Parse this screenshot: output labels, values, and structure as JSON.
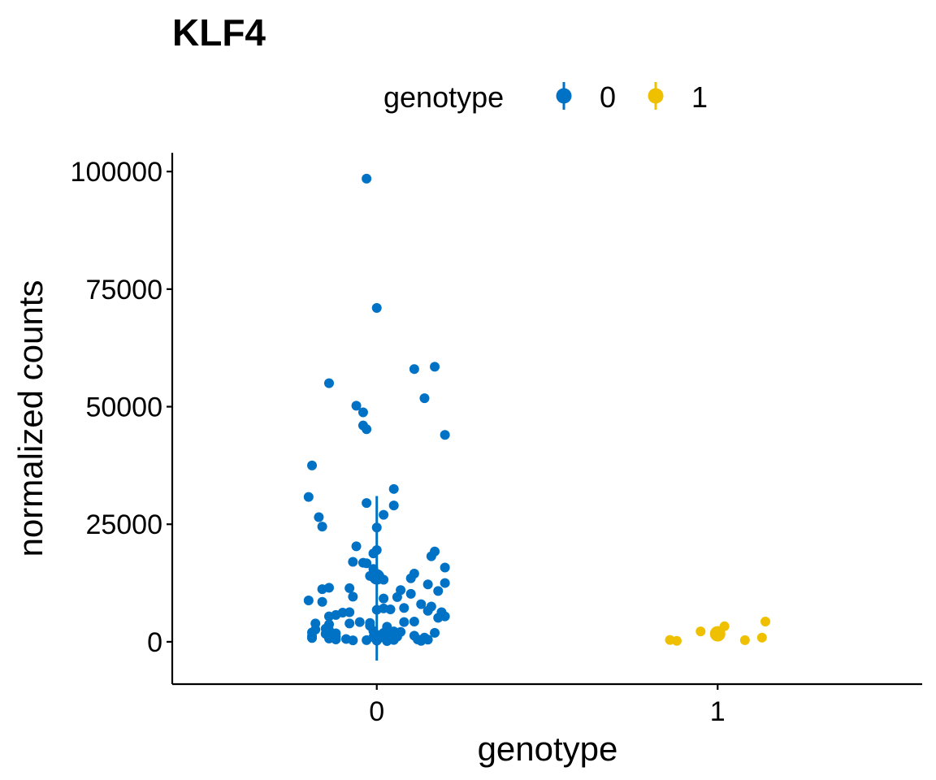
{
  "chart_data": {
    "type": "scatter",
    "title": "KLF4",
    "xlabel": "genotype",
    "ylabel": "normalized counts",
    "categories": [
      "0",
      "1"
    ],
    "xlim": [
      -0.6,
      1.6
    ],
    "ylim": [
      -9000,
      104000
    ],
    "yticks": [
      0,
      25000,
      50000,
      75000,
      100000
    ],
    "yticklabels": [
      "0",
      "25000",
      "50000",
      "75000",
      "100000"
    ],
    "grid": false,
    "legend": {
      "title": "genotype",
      "position": "top",
      "entries": [
        "0",
        "1"
      ]
    },
    "colors": {
      "0": "#0072C6",
      "1": "#EFC000"
    },
    "series": [
      {
        "name": "0",
        "summary": {
          "mean": 13800,
          "lower": -4000,
          "upper": 31000
        },
        "points": [
          [
            -0.03,
            98500
          ],
          [
            0.0,
            71000
          ],
          [
            -0.14,
            55000
          ],
          [
            0.11,
            58000
          ],
          [
            0.17,
            58500
          ],
          [
            0.14,
            51800
          ],
          [
            -0.06,
            50200
          ],
          [
            -0.04,
            48800
          ],
          [
            -0.04,
            46000
          ],
          [
            -0.03,
            45200
          ],
          [
            0.2,
            44000
          ],
          [
            -0.19,
            37500
          ],
          [
            0.05,
            32500
          ],
          [
            -0.2,
            30800
          ],
          [
            -0.03,
            29500
          ],
          [
            0.05,
            29000
          ],
          [
            0.02,
            27000
          ],
          [
            -0.17,
            26500
          ],
          [
            -0.16,
            24500
          ],
          [
            0.0,
            24300
          ],
          [
            -0.06,
            20300
          ],
          [
            0.0,
            19500
          ],
          [
            0.17,
            19200
          ],
          [
            -0.01,
            18800
          ],
          [
            0.16,
            18200
          ],
          [
            -0.07,
            17000
          ],
          [
            -0.04,
            16800
          ],
          [
            -0.03,
            16700
          ],
          [
            0.2,
            15800
          ],
          [
            -0.01,
            15500
          ],
          [
            0.11,
            14500
          ],
          [
            -0.02,
            14000
          ],
          [
            0.1,
            13500
          ],
          [
            0.02,
            13200
          ],
          [
            0.2,
            12500
          ],
          [
            0.15,
            12200
          ],
          [
            -0.14,
            11500
          ],
          [
            -0.08,
            11400
          ],
          [
            -0.16,
            11200
          ],
          [
            0.07,
            11000
          ],
          [
            0.18,
            10800
          ],
          [
            0.1,
            10200
          ],
          [
            0.06,
            9500
          ],
          [
            -0.07,
            9600
          ],
          [
            0.02,
            9200
          ],
          [
            -0.2,
            8800
          ],
          [
            -0.16,
            8500
          ],
          [
            0.13,
            8000
          ],
          [
            0.16,
            7500
          ],
          [
            0.08,
            7200
          ],
          [
            0.02,
            7100
          ],
          [
            0.04,
            6900
          ],
          [
            0.15,
            6600
          ],
          [
            0.19,
            6300
          ],
          [
            0.0,
            6800
          ],
          [
            -0.08,
            6300
          ],
          [
            -0.1,
            6200
          ],
          [
            -0.12,
            5700
          ],
          [
            -0.14,
            5400
          ],
          [
            0.2,
            5400
          ],
          [
            0.18,
            5100
          ],
          [
            0.11,
            4300
          ],
          [
            0.08,
            4200
          ],
          [
            -0.05,
            4200
          ],
          [
            -0.02,
            4000
          ],
          [
            -0.08,
            3900
          ],
          [
            -0.18,
            3900
          ],
          [
            -0.14,
            3700
          ],
          [
            -0.02,
            3400
          ],
          [
            0.03,
            3200
          ],
          [
            -0.15,
            2800
          ],
          [
            -0.18,
            2600
          ],
          [
            -0.14,
            2500
          ],
          [
            -0.01,
            2300
          ],
          [
            0.05,
            2200
          ],
          [
            0.07,
            2100
          ],
          [
            -0.19,
            2000
          ],
          [
            0.17,
            1900
          ],
          [
            0.02,
            1900
          ],
          [
            -0.12,
            1800
          ],
          [
            -0.15,
            1700
          ],
          [
            0.0,
            1500
          ],
          [
            0.04,
            1400
          ],
          [
            0.11,
            1300
          ],
          [
            -0.19,
            1200
          ],
          [
            -0.12,
            1100
          ],
          [
            0.06,
            1100
          ],
          [
            -0.01,
            1000
          ],
          [
            0.01,
            900
          ],
          [
            0.14,
            900
          ],
          [
            -0.19,
            800
          ],
          [
            0.05,
            800
          ],
          [
            -0.14,
            700
          ],
          [
            0.03,
            650
          ],
          [
            -0.09,
            600
          ],
          [
            -0.12,
            500
          ],
          [
            0.12,
            500
          ],
          [
            0.15,
            450
          ],
          [
            0.05,
            400
          ],
          [
            -0.03,
            350
          ],
          [
            -0.07,
            300
          ],
          [
            0.0,
            250
          ],
          [
            0.13,
            200
          ],
          [
            0.03,
            150
          ]
        ]
      },
      {
        "name": "1",
        "summary": {
          "mean": 1700,
          "lower": 300,
          "upper": 3200
        },
        "points": [
          [
            1.14,
            4300
          ],
          [
            1.02,
            3300
          ],
          [
            0.95,
            2200
          ],
          [
            1.0,
            1800
          ],
          [
            1.13,
            900
          ],
          [
            0.86,
            400
          ],
          [
            1.08,
            350
          ],
          [
            0.88,
            200
          ]
        ]
      }
    ]
  }
}
